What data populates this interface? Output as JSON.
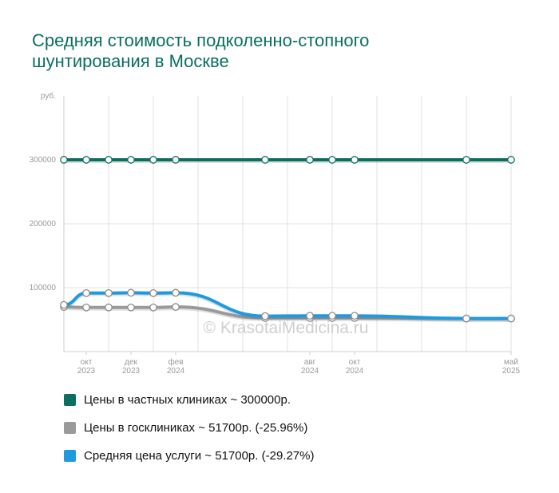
{
  "title": "Средняя стоимость подколенно-стопного шунтирования в Москве",
  "watermark": "© KrasotaiMedicina.ru",
  "chart_data": {
    "type": "line",
    "ylabel": "руб.",
    "ylim": [
      0,
      400000
    ],
    "yticks": [
      100000,
      200000,
      300000
    ],
    "grid": true,
    "legend_position": "bottom",
    "x": [
      "2023-09",
      "2023-10",
      "2023-11",
      "2023-12",
      "2024-01",
      "2024-02",
      "2024-03",
      "2024-04",
      "2024-05",
      "2024-06",
      "2024-07",
      "2024-08",
      "2024-09",
      "2024-10",
      "2024-11",
      "2024-12",
      "2025-01",
      "2025-02",
      "2025-03",
      "2025-04",
      "2025-05"
    ],
    "xtick_labels": [
      {
        "x": "2023-10",
        "month": "окт",
        "year": "2023"
      },
      {
        "x": "2023-12",
        "month": "дек",
        "year": "2023"
      },
      {
        "x": "2024-02",
        "month": "фев",
        "year": "2024"
      },
      {
        "x": "2024-08",
        "month": "авг",
        "year": "2024"
      },
      {
        "x": "2024-10",
        "month": "окт",
        "year": "2024"
      },
      {
        "x": "2025-05",
        "month": "май",
        "year": "2025"
      }
    ],
    "series": [
      {
        "name": "Цены в частных клиниках ~ 300000р.",
        "color": "#0a6e63",
        "points": [
          [
            "2023-09",
            300000
          ],
          [
            "2023-10",
            300000
          ],
          [
            "2023-11",
            300000
          ],
          [
            "2023-12",
            300000
          ],
          [
            "2024-01",
            300000
          ],
          [
            "2024-02",
            300000
          ],
          [
            "2024-06",
            300000
          ],
          [
            "2024-08",
            300000
          ],
          [
            "2024-09",
            300000
          ],
          [
            "2024-10",
            300000
          ],
          [
            "2025-03",
            300000
          ],
          [
            "2025-05",
            300000
          ]
        ]
      },
      {
        "name": "Цены в госклиниках ~ 51700р. (-25.96%)",
        "color": "#9a9a9a",
        "points": [
          [
            "2023-09",
            69800
          ],
          [
            "2023-10",
            69000
          ],
          [
            "2023-11",
            69000
          ],
          [
            "2023-12",
            69000
          ],
          [
            "2024-01",
            69000
          ],
          [
            "2024-02",
            69800
          ],
          [
            "2024-06",
            52500
          ],
          [
            "2024-08",
            52500
          ],
          [
            "2024-09",
            52500
          ],
          [
            "2024-10",
            52500
          ],
          [
            "2025-03",
            51700
          ],
          [
            "2025-05",
            51700
          ]
        ]
      },
      {
        "name": "Средняя цена услуги ~ 51700р. (-29.27%)",
        "color": "#1e9be0",
        "points": [
          [
            "2023-09",
            73000
          ],
          [
            "2023-10",
            91500
          ],
          [
            "2023-11",
            91500
          ],
          [
            "2023-12",
            92000
          ],
          [
            "2024-01",
            91500
          ],
          [
            "2024-02",
            92000
          ],
          [
            "2024-06",
            55500
          ],
          [
            "2024-08",
            56000
          ],
          [
            "2024-09",
            56000
          ],
          [
            "2024-10",
            56000
          ],
          [
            "2025-03",
            51700
          ],
          [
            "2025-05",
            51700
          ]
        ]
      }
    ]
  }
}
